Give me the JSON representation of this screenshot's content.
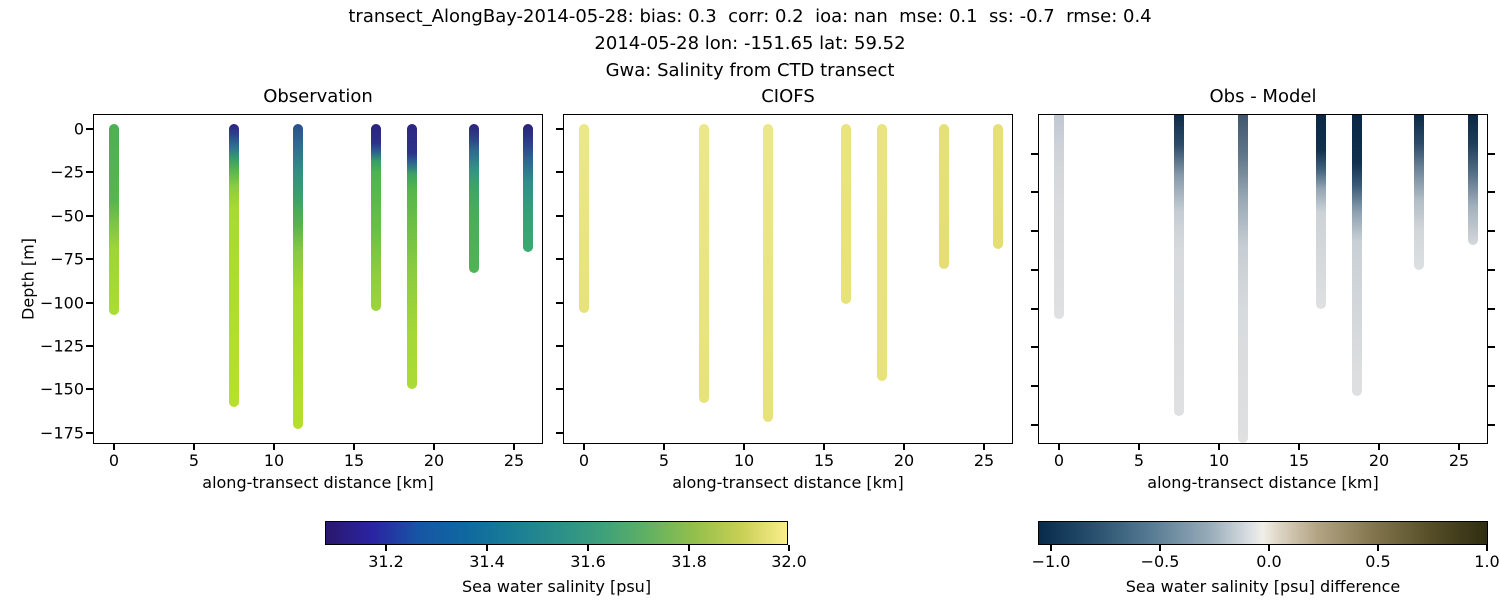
{
  "figure": {
    "title_line1": "transect_AlongBay-2014-05-28: bias: 0.3  corr: 0.2  ioa: nan  mse: 0.1  ss: -0.7  rmse: 0.4",
    "title_line2": "2014-05-28 lon: -151.65 lat: 59.52",
    "title_line3": "Gwa: Salinity from CTD transect",
    "background": "#ffffff"
  },
  "axes": {
    "xlabel": "along-transect distance [km]",
    "ylabel": "Depth [m]",
    "xtick_labels": [
      "0",
      "5",
      "10",
      "15",
      "20",
      "25"
    ],
    "ytick_labels": [
      "0",
      "−25",
      "−50",
      "−75",
      "−100",
      "−125",
      "−150",
      "−175"
    ]
  },
  "panels": [
    {
      "key": "observation",
      "title": "Observation",
      "bars": [
        {
          "km": 0,
          "depth_m": 104,
          "gradient": [
            [
              0,
              "#4bb154"
            ],
            [
              40,
              "#55b64b"
            ],
            [
              52,
              "#7dc443"
            ],
            [
              65,
              "#9dd43c"
            ],
            [
              100,
              "#abdc36"
            ]
          ]
        },
        {
          "km": 7.5,
          "depth_m": 157,
          "gradient": [
            [
              0,
              "#2d2183"
            ],
            [
              4,
              "#2c4590"
            ],
            [
              8,
              "#2c7190"
            ],
            [
              12,
              "#339b6e"
            ],
            [
              16,
              "#52b54c"
            ],
            [
              22,
              "#8ccc3e"
            ],
            [
              30,
              "#a8d936"
            ],
            [
              100,
              "#b7e02d"
            ]
          ]
        },
        {
          "km": 11.5,
          "depth_m": 170,
          "gradient": [
            [
              0,
              "#2d4e8e"
            ],
            [
              7,
              "#2d6d91"
            ],
            [
              15,
              "#2f8e85"
            ],
            [
              25,
              "#3aa468"
            ],
            [
              33,
              "#55b54a"
            ],
            [
              42,
              "#89ca40"
            ],
            [
              55,
              "#a6d837"
            ],
            [
              100,
              "#b5df2e"
            ]
          ]
        },
        {
          "km": 16.4,
          "depth_m": 102,
          "gradient": [
            [
              0,
              "#2b2380"
            ],
            [
              10,
              "#2c2f88"
            ],
            [
              15,
              "#2d6190"
            ],
            [
              20,
              "#36a065"
            ],
            [
              26,
              "#4db351"
            ],
            [
              55,
              "#68bf46"
            ],
            [
              80,
              "#8ecd3f"
            ],
            [
              100,
              "#9cd43c"
            ]
          ]
        },
        {
          "km": 18.65,
          "depth_m": 147,
          "gradient": [
            [
              0,
              "#2b2781"
            ],
            [
              11,
              "#2c3389"
            ],
            [
              15,
              "#2e6a90"
            ],
            [
              19,
              "#3ca362"
            ],
            [
              25,
              "#55b64a"
            ],
            [
              55,
              "#8bcb40"
            ],
            [
              80,
              "#a5d837"
            ],
            [
              100,
              "#abdb35"
            ]
          ]
        },
        {
          "km": 22.5,
          "depth_m": 80,
          "gradient": [
            [
              0,
              "#2c237e"
            ],
            [
              10,
              "#2d4289"
            ],
            [
              18,
              "#2e6b91"
            ],
            [
              30,
              "#2f9383"
            ],
            [
              42,
              "#3ba567"
            ],
            [
              60,
              "#46ae5b"
            ],
            [
              100,
              "#50b455"
            ]
          ]
        },
        {
          "km": 25.85,
          "depth_m": 68,
          "gradient": [
            [
              0,
              "#2b227b"
            ],
            [
              14,
              "#2d3d88"
            ],
            [
              28,
              "#2e6590"
            ],
            [
              45,
              "#2f8d89"
            ],
            [
              70,
              "#36a077"
            ],
            [
              100,
              "#3baa70"
            ]
          ]
        }
      ]
    },
    {
      "key": "ciofs",
      "title": "CIOFS",
      "bars": [
        {
          "km": 0,
          "depth_m": 103,
          "gradient": [
            [
              0,
              "#ebe88b"
            ],
            [
              100,
              "#e7e27a"
            ]
          ]
        },
        {
          "km": 7.5,
          "depth_m": 155,
          "gradient": [
            [
              0,
              "#ebe88b"
            ],
            [
              100,
              "#e7e27a"
            ]
          ]
        },
        {
          "km": 11.5,
          "depth_m": 166,
          "gradient": [
            [
              0,
              "#ebe88b"
            ],
            [
              100,
              "#e7e27a"
            ]
          ]
        },
        {
          "km": 16.4,
          "depth_m": 98,
          "gradient": [
            [
              0,
              "#e9e480"
            ],
            [
              100,
              "#e7e27a"
            ]
          ]
        },
        {
          "km": 18.65,
          "depth_m": 142,
          "gradient": [
            [
              0,
              "#e9e480"
            ],
            [
              100,
              "#e7e27a"
            ]
          ]
        },
        {
          "km": 22.5,
          "depth_m": 78,
          "gradient": [
            [
              0,
              "#e6e07b"
            ],
            [
              100,
              "#e4de74"
            ]
          ]
        },
        {
          "km": 25.85,
          "depth_m": 66,
          "gradient": [
            [
              0,
              "#e6e07b"
            ],
            [
              100,
              "#e4de74"
            ]
          ]
        }
      ]
    },
    {
      "key": "obs-model",
      "title": "Obs - Model",
      "flat_top": true,
      "bars": [
        {
          "km": 0,
          "depth_m": 105,
          "gradient": [
            [
              0,
              "#bfc7d1"
            ],
            [
              15,
              "#cdd2d8"
            ],
            [
              30,
              "#d5d8db"
            ],
            [
              45,
              "#d9dbdd"
            ],
            [
              100,
              "#dfe0e1"
            ]
          ]
        },
        {
          "km": 7.5,
          "depth_m": 155,
          "gradient": [
            [
              0,
              "#0e2c49"
            ],
            [
              10,
              "#2c4c69"
            ],
            [
              20,
              "#8799a9"
            ],
            [
              32,
              "#c5cdd3"
            ],
            [
              45,
              "#d7dadd"
            ],
            [
              100,
              "#dfe0e1"
            ]
          ]
        },
        {
          "km": 11.5,
          "depth_m": 169,
          "gradient": [
            [
              0,
              "#40576f"
            ],
            [
              12,
              "#5f7689"
            ],
            [
              25,
              "#97a7b3"
            ],
            [
              40,
              "#c6cdd3"
            ],
            [
              60,
              "#d8dbdd"
            ],
            [
              100,
              "#dfe0e1"
            ]
          ]
        },
        {
          "km": 16.4,
          "depth_m": 100,
          "gradient": [
            [
              0,
              "#0a2845"
            ],
            [
              18,
              "#10304d"
            ],
            [
              28,
              "#41607b"
            ],
            [
              38,
              "#93a5b3"
            ],
            [
              50,
              "#ccd2d7"
            ],
            [
              100,
              "#dfe0e1"
            ]
          ]
        },
        {
          "km": 18.65,
          "depth_m": 145,
          "gradient": [
            [
              0,
              "#0a2845"
            ],
            [
              17,
              "#10304d"
            ],
            [
              25,
              "#3a5a76"
            ],
            [
              35,
              "#91a3b2"
            ],
            [
              45,
              "#c9d0d5"
            ],
            [
              100,
              "#dfe0e1"
            ]
          ]
        },
        {
          "km": 22.5,
          "depth_m": 80,
          "gradient": [
            [
              0,
              "#0c2a47"
            ],
            [
              18,
              "#2a4a67"
            ],
            [
              35,
              "#6d8598"
            ],
            [
              55,
              "#b2bdc6"
            ],
            [
              75,
              "#d3d7da"
            ],
            [
              100,
              "#dde0e1"
            ]
          ]
        },
        {
          "km": 25.85,
          "depth_m": 67,
          "gradient": [
            [
              0,
              "#0b2946"
            ],
            [
              22,
              "#1e3e5a"
            ],
            [
              45,
              "#546f86"
            ],
            [
              70,
              "#a2b0bc"
            ],
            [
              100,
              "#d4d8db"
            ]
          ]
        }
      ]
    }
  ],
  "colorbars": [
    {
      "label": "Sea water salinity [psu]",
      "tick_labels": [
        "31.2",
        "31.4",
        "31.6",
        "31.8",
        "32.0"
      ],
      "gradient": [
        [
          0,
          "#2a186c"
        ],
        [
          10,
          "#2b23a2"
        ],
        [
          20,
          "#1755a5"
        ],
        [
          30,
          "#0e68a0"
        ],
        [
          40,
          "#197c97"
        ],
        [
          50,
          "#2a8e8a"
        ],
        [
          60,
          "#3ea07a"
        ],
        [
          70,
          "#62b162"
        ],
        [
          80,
          "#94bf4c"
        ],
        [
          90,
          "#c8cf54"
        ],
        [
          100,
          "#faee8d"
        ]
      ]
    },
    {
      "label": "Sea water salinity [psu] difference",
      "tick_labels": [
        "−1.0",
        "−0.5",
        "0.0",
        "0.5",
        "1.0"
      ],
      "gradient": [
        [
          0,
          "#082a4b"
        ],
        [
          12,
          "#27506e"
        ],
        [
          25,
          "#567b93"
        ],
        [
          38,
          "#97abb9"
        ],
        [
          47,
          "#dadfe2"
        ],
        [
          50,
          "#f1efe9"
        ],
        [
          53,
          "#e0d8c9"
        ],
        [
          62,
          "#b3a584"
        ],
        [
          75,
          "#81744c"
        ],
        [
          88,
          "#544c26"
        ],
        [
          100,
          "#2f2d11"
        ]
      ]
    }
  ],
  "chart_data": {
    "type": "scatter",
    "description": "Three-panel CTD transect comparison: vertical salinity profiles (dot columns) plotted at along-transect distances, colored by salinity (left two panels) and by obs-model difference (right panel).",
    "stats": {
      "bias": 0.3,
      "corr": 0.2,
      "ioa": "nan",
      "mse": 0.1,
      "ss": -0.7,
      "rmse": 0.4
    },
    "date": "2014-05-28",
    "lon": -151.65,
    "lat": 59.52,
    "xlabel": "along-transect distance [km]",
    "ylabel": "Depth [m]",
    "xlim": [
      -1.3,
      27.2
    ],
    "ylim": [
      -175,
      0
    ],
    "x_km": [
      0,
      7.5,
      11.5,
      16.4,
      18.65,
      22.5,
      25.85
    ],
    "panels": [
      {
        "title": "Observation",
        "bottom_depth_m": [
          -104,
          -157,
          -170,
          -102,
          -147,
          -80,
          -68
        ],
        "surface_salinity_psu": [
          31.78,
          31.1,
          31.3,
          31.08,
          31.08,
          31.1,
          31.1
        ],
        "deep_salinity_psu": [
          31.9,
          32.0,
          31.95,
          31.85,
          31.9,
          31.75,
          31.6
        ]
      },
      {
        "title": "CIOFS",
        "bottom_depth_m": [
          -103,
          -155,
          -166,
          -98,
          -142,
          -78,
          -66
        ],
        "surface_salinity_psu": [
          32.0,
          32.0,
          32.0,
          32.0,
          32.0,
          32.0,
          32.0
        ],
        "deep_salinity_psu": [
          32.0,
          32.0,
          32.0,
          32.0,
          32.0,
          32.0,
          32.0
        ]
      },
      {
        "title": "Obs - Model",
        "bottom_depth_m": [
          -105,
          -155,
          -169,
          -100,
          -145,
          -80,
          -67
        ],
        "surface_diff_psu": [
          -0.25,
          -1.0,
          -0.6,
          -1.05,
          -1.05,
          -1.0,
          -1.0
        ],
        "deep_diff_psu": [
          -0.1,
          -0.05,
          -0.05,
          -0.1,
          -0.05,
          -0.1,
          -0.15
        ]
      }
    ],
    "colorbars": [
      {
        "label": "Sea water salinity [psu]",
        "ticks": [
          31.2,
          31.4,
          31.6,
          31.8,
          32.0
        ],
        "range": [
          31.08,
          32.0
        ],
        "colormap": "haline-like (dark indigo → blue → teal → green → pale yellow)",
        "orientation": "horizontal"
      },
      {
        "label": "Sea water salinity [psu] difference",
        "ticks": [
          -1.0,
          -0.5,
          0.0,
          0.5,
          1.0
        ],
        "range": [
          -1.05,
          1.05
        ],
        "colormap": "diverging (dark navy → white → dark olive)",
        "orientation": "horizontal"
      }
    ]
  }
}
